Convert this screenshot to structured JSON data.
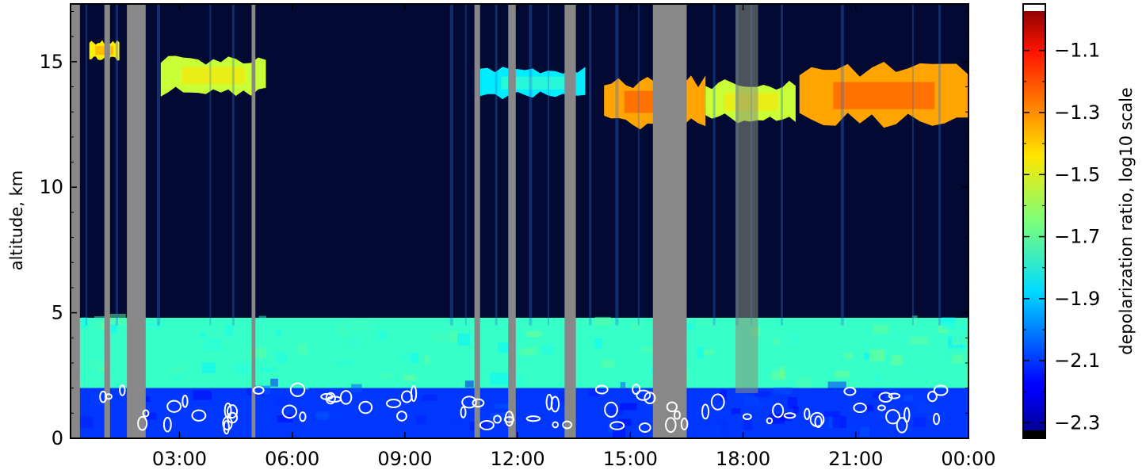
{
  "chart_data": {
    "type": "heatmap",
    "title": "",
    "xlabel": "",
    "ylabel": "altitude, km",
    "colorbar_label": "depolarization ratio, log10 scale",
    "x_ticks": [
      "03:00",
      "06:00",
      "09:00",
      "12:00",
      "15:00",
      "18:00",
      "21:00",
      "00:00"
    ],
    "x_tick_hours": [
      3,
      6,
      9,
      12,
      15,
      18,
      21,
      24
    ],
    "xlim_hours": [
      0.1,
      24
    ],
    "y_ticks": [
      0,
      5,
      10,
      15
    ],
    "ylim": [
      0,
      17.3
    ],
    "colorbar_ticks": [
      "-1.1",
      "-1.3",
      "-1.5",
      "-1.7",
      "-1.9",
      "-2.1",
      "-2.3"
    ],
    "colorbar_tick_values": [
      -1.1,
      -1.3,
      -1.5,
      -1.7,
      -1.9,
      -2.1,
      -2.3
    ],
    "colorbar_range": [
      -2.35,
      -0.95
    ],
    "colormap": "jet",
    "no_data_color": "#888888",
    "contour_color": "#ffffff",
    "features": [
      {
        "kind": "aerosol_layer",
        "t": [
          0.1,
          24
        ],
        "alt_bottom_km": 2.0,
        "alt_top_km": 4.8,
        "value": -1.75
      },
      {
        "kind": "boundary_layer",
        "t": [
          0.1,
          24
        ],
        "alt_bottom_km": 0,
        "alt_top_km": 2.0,
        "value": -2.1
      },
      {
        "kind": "cirrus",
        "t": [
          0.6,
          1.4
        ],
        "alt_bottom_km": 15.0,
        "alt_top_km": 15.9,
        "value": -1.45
      },
      {
        "kind": "cirrus",
        "t": [
          2.5,
          5.3
        ],
        "alt_bottom_km": 13.6,
        "alt_top_km": 15.3,
        "value": -1.55
      },
      {
        "kind": "cirrus",
        "t": [
          11.0,
          13.8
        ],
        "alt_bottom_km": 13.5,
        "alt_top_km": 14.8,
        "value": -1.85
      },
      {
        "kind": "cirrus",
        "t": [
          14.3,
          17.0
        ],
        "alt_bottom_km": 12.3,
        "alt_top_km": 14.5,
        "value": -1.35
      },
      {
        "kind": "cirrus",
        "t": [
          17.0,
          19.4
        ],
        "alt_bottom_km": 12.5,
        "alt_top_km": 14.3,
        "value": -1.55
      },
      {
        "kind": "cirrus",
        "t": [
          19.5,
          24.0
        ],
        "alt_bottom_km": 12.3,
        "alt_top_km": 15.0,
        "value": -1.35
      }
    ],
    "no_data_columns": [
      {
        "t": [
          0.1,
          0.35
        ]
      },
      {
        "t": [
          1.0,
          1.15
        ]
      },
      {
        "t": [
          1.6,
          2.1
        ]
      },
      {
        "t": [
          4.92,
          5.02
        ]
      },
      {
        "t": [
          10.85,
          11.0
        ]
      },
      {
        "t": [
          11.75,
          11.95
        ]
      },
      {
        "t": [
          13.25,
          13.55
        ]
      },
      {
        "t": [
          15.6,
          16.5
        ]
      },
      {
        "t": [
          24.0,
          24.1
        ]
      }
    ]
  }
}
